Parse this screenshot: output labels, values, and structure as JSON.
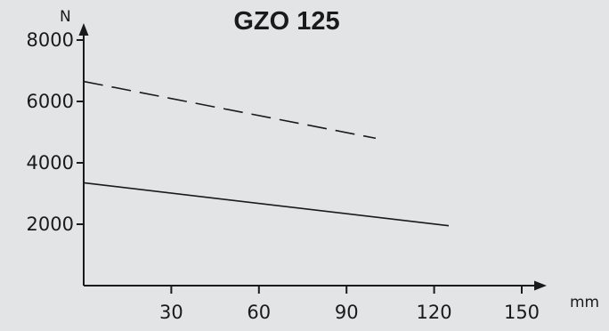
{
  "chart_data": {
    "type": "line",
    "title": "GZO 125",
    "xlabel": "mm",
    "ylabel": "N",
    "xlim": [
      0,
      150
    ],
    "ylim": [
      0,
      8000
    ],
    "x_ticks": [
      "30",
      "60",
      "90",
      "120",
      "150"
    ],
    "y_ticks": [
      "2000",
      "4000",
      "6000",
      "8000"
    ],
    "grid": false,
    "series": [
      {
        "style": "dashed",
        "color": "#1a1a1a",
        "x": [
          0,
          100
        ],
        "y": [
          6650,
          4800
        ]
      },
      {
        "style": "solid",
        "color": "#1a1a1a",
        "x": [
          0,
          125
        ],
        "y": [
          3350,
          1950
        ]
      }
    ]
  }
}
